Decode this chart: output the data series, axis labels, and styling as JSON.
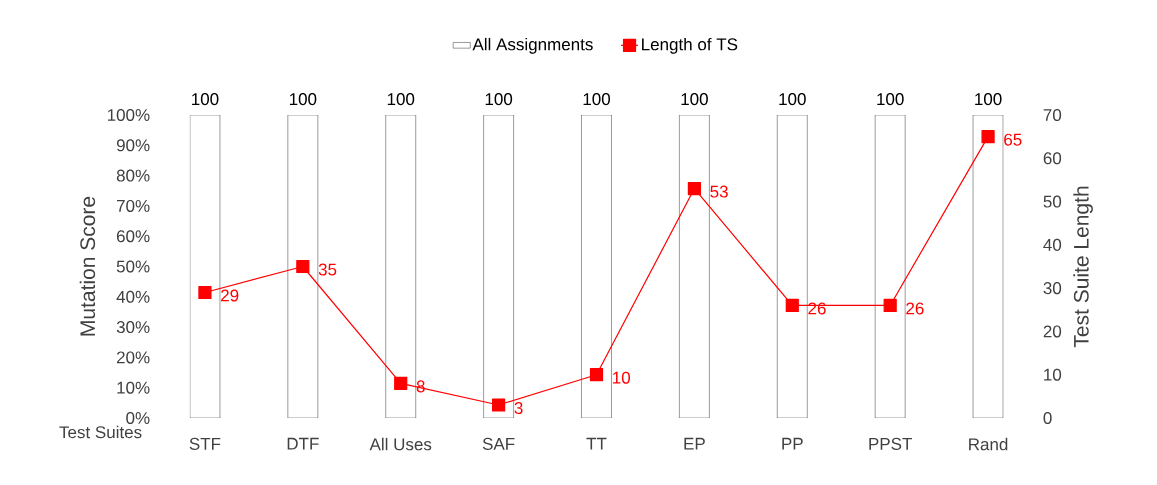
{
  "chart_data": {
    "type": "bar",
    "xlabel": "Test Suites",
    "ylabel": "Mutation Score",
    "y2label": "Test Suite Length",
    "categories": [
      "STF",
      "DTF",
      "All Uses",
      "SAF",
      "TT",
      "EP",
      "PP",
      "PPST",
      "Rand"
    ],
    "series": [
      {
        "name": "All Assignments",
        "color": "#ffffff",
        "values": [
          100,
          100,
          100,
          100,
          100,
          100,
          100,
          100,
          100
        ]
      },
      {
        "name": "Length of TS",
        "type": "line",
        "axis": "y2",
        "color": "#ff0000",
        "marker": "square",
        "values": [
          29,
          35,
          8,
          3,
          10,
          53,
          26,
          26,
          65
        ]
      }
    ],
    "ylim": [
      0,
      100
    ],
    "yticks": [
      {
        "value": 0,
        "label": "0%"
      },
      {
        "value": 10,
        "label": "10%"
      },
      {
        "value": 20,
        "label": "20%"
      },
      {
        "value": 30,
        "label": "30%"
      },
      {
        "value": 40,
        "label": "40%"
      },
      {
        "value": 50,
        "label": "50%"
      },
      {
        "value": 60,
        "label": "60%"
      },
      {
        "value": 70,
        "label": "70%"
      },
      {
        "value": 80,
        "label": "80%"
      },
      {
        "value": 90,
        "label": "90%"
      },
      {
        "value": 100,
        "label": "100%"
      }
    ],
    "y2lim": [
      0,
      70
    ],
    "y2ticks": [
      0,
      10,
      20,
      30,
      40,
      50,
      60,
      70
    ],
    "data_labels": true,
    "legend": "top",
    "grid": false
  }
}
